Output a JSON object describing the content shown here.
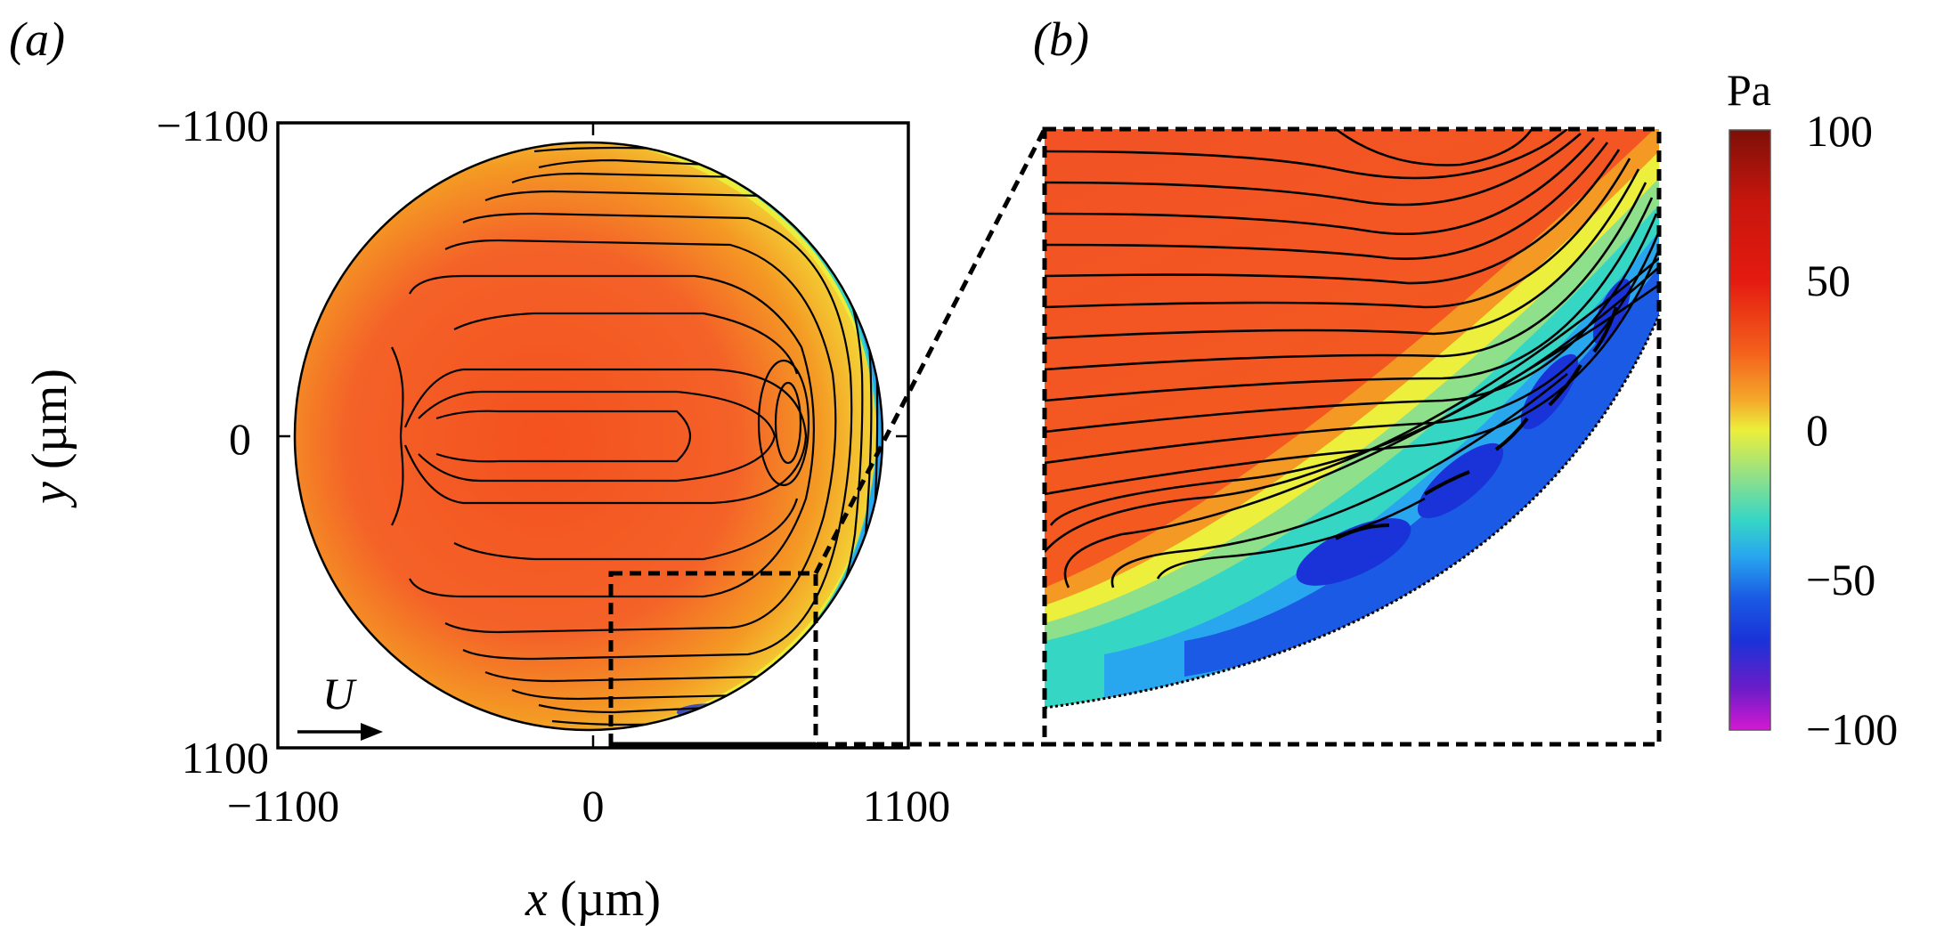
{
  "chart_data": [
    {
      "type": "contour",
      "panel_label": "(a)",
      "xlabel_var": "x",
      "xlabel_unit": "(µm)",
      "ylabel_var": "y",
      "ylabel_unit": "(µm)",
      "xlim": [
        -1100,
        1100
      ],
      "ylim": [
        -1100,
        1100
      ],
      "y_axis_inverted": true,
      "xticks": [
        -1100,
        0,
        1100
      ],
      "xtick_labels": [
        "−1100",
        "0",
        "1100"
      ],
      "yticks": [
        -1100,
        0,
        1100
      ],
      "ytick_labels": [
        "−1100",
        "0",
        "1100"
      ],
      "grid": false,
      "droplet_radius": 1000,
      "flow_annotation": "U",
      "flow_direction": "+x",
      "zoom_box": {
        "x": [
          70,
          820
        ],
        "y": [
          470,
          1080
        ]
      }
    },
    {
      "type": "contour",
      "panel_label": "(b)",
      "description_of_region": "zoom of dashed box in (a)"
    }
  ],
  "colorbar": {
    "unit": "Pa",
    "range": [
      -100,
      100
    ],
    "ticks": [
      100,
      50,
      0,
      -50,
      -100
    ],
    "tick_labels": [
      "100",
      "50",
      "0",
      "−50",
      "−100"
    ],
    "colors": [
      "#7d1008",
      "#e41a10",
      "#f4511e",
      "#f49a24",
      "#ecef3b",
      "#36d6c5",
      "#28a7ee",
      "#1a33d8",
      "#5b1bc6",
      "#c21ac2"
    ]
  }
}
